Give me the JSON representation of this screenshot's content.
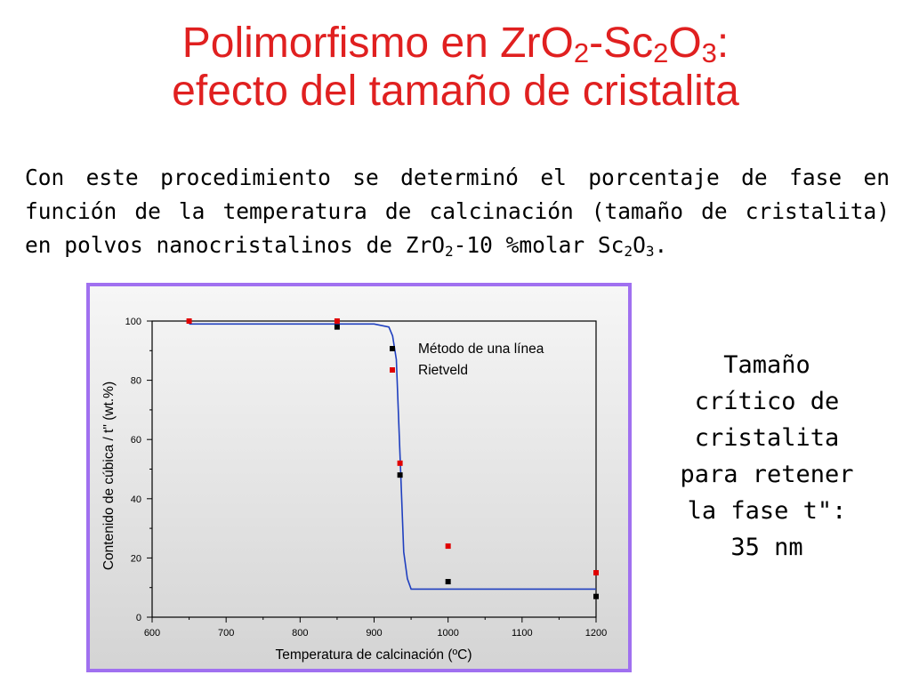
{
  "slide": {
    "title_line1_pre": "Polimorfismo en ZrO",
    "title_sub1": "2",
    "title_mid": "-Sc",
    "title_sub2": "2",
    "title_o": "O",
    "title_sub3": "3",
    "title_colon": ":",
    "title_line2": "efecto del tamaño de cristalita",
    "intro_text": "Con este procedimiento se determinó el porcentaje de fase en función de la temperatura de calcinación (tamaño de cristalita) en polvos nanocristalinos de ZrO",
    "intro_sub1": "2",
    "intro_mid": "-10 %molar Sc",
    "intro_sub2": "2",
    "intro_o": "O",
    "intro_sub3": "3",
    "intro_end": ".",
    "side_lines": [
      "Tamaño",
      "crítico de",
      "cristalita",
      "para retener",
      "la fase t\":",
      "35 nm"
    ]
  },
  "colors": {
    "title": "#e02020",
    "frame": "#a070f0",
    "fit_line": "#1f3fbf",
    "series_linea": "#000000",
    "series_rietveld": "#e00000"
  },
  "chart_data": {
    "type": "scatter",
    "title": "",
    "xlabel": "Temperatura de calcinación (ºC)",
    "ylabel": "Contenido de cúbica / t\" (wt.%)",
    "xlim": [
      600,
      1200
    ],
    "ylim": [
      0,
      100
    ],
    "xticks": [
      600,
      700,
      800,
      900,
      1000,
      1100,
      1200
    ],
    "yticks": [
      0,
      20,
      40,
      60,
      80,
      100
    ],
    "grid": false,
    "legend": "top-right",
    "series": [
      {
        "name": "Método de una línea",
        "marker": "square",
        "color": "#000000",
        "x": [
          850,
          935,
          1000,
          1200
        ],
        "y": [
          98,
          48,
          12,
          7
        ]
      },
      {
        "name": "Rietveld",
        "marker": "square",
        "color": "#e00000",
        "x": [
          650,
          850,
          935,
          1000,
          1200
        ],
        "y": [
          100,
          100,
          52,
          24,
          15
        ]
      }
    ],
    "fit_curve": {
      "color": "#1f3fbf",
      "x": [
        650,
        800,
        900,
        920,
        925,
        930,
        935,
        940,
        945,
        950,
        960,
        1000,
        1100,
        1200
      ],
      "y": [
        99,
        99,
        99,
        98,
        95,
        87,
        55,
        22,
        13,
        9.5,
        9.5,
        9.5,
        9.5,
        9.5
      ]
    }
  }
}
